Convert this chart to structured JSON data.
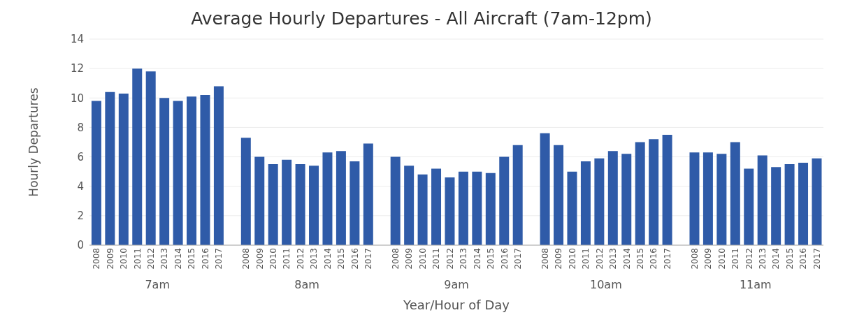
{
  "chart_data": {
    "type": "bar",
    "title": "Average Hourly Departures - All Aircraft (7am-12pm)",
    "xlabel": "Year/Hour of Day",
    "ylabel": "Hourly Departures",
    "categories": [
      "2008",
      "2009",
      "2010",
      "2011",
      "2012",
      "2013",
      "2014",
      "2015",
      "2016",
      "2017",
      null,
      "2008",
      "2009",
      "2010",
      "2011",
      "2012",
      "2013",
      "2014",
      "2015",
      "2016",
      "2017",
      null,
      "2008",
      "2009",
      "2010",
      "2011",
      "2012",
      "2013",
      "2014",
      "2015",
      "2016",
      "2017",
      null,
      "2008",
      "2009",
      "2010",
      "2011",
      "2012",
      "2013",
      "2014",
      "2015",
      "2016",
      "2017",
      null,
      "2008",
      "2009",
      "2010",
      "2011",
      "2012",
      "2013",
      "2014",
      "2015",
      "2016",
      "2017"
    ],
    "values": [
      9.8,
      10.4,
      10.3,
      12.0,
      11.8,
      10.0,
      9.8,
      10.1,
      10.2,
      10.8,
      null,
      7.3,
      6.0,
      5.5,
      5.8,
      5.5,
      5.4,
      6.3,
      6.4,
      5.7,
      6.9,
      null,
      6.0,
      5.4,
      4.8,
      5.2,
      4.6,
      5.0,
      5.0,
      4.9,
      6.0,
      6.8,
      null,
      7.6,
      6.8,
      5.0,
      5.7,
      5.9,
      6.4,
      6.2,
      7.0,
      7.2,
      7.5,
      null,
      6.3,
      6.3,
      6.2,
      7.0,
      5.2,
      6.1,
      5.3,
      5.5,
      5.6,
      5.9
    ],
    "color": "#2f5ba8",
    "annotations": [
      "7am",
      "8am",
      "9am",
      "10am",
      "11am"
    ],
    "ylim": [
      0,
      14
    ],
    "yticks": [
      0,
      2,
      4,
      6,
      8,
      10,
      12,
      14
    ],
    "grid": "y"
  }
}
